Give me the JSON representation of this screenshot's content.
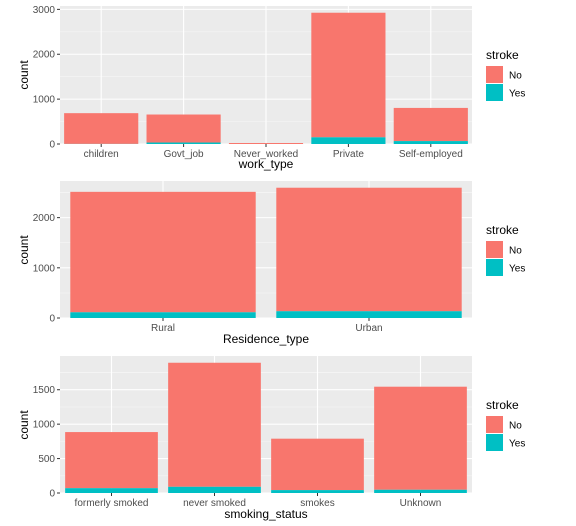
{
  "colors": {
    "panel_bg": "#ebebeb",
    "grid_major": "#ffffff",
    "grid_minor": "#f5f5f5",
    "tick": "#333333",
    "no": "#f8766d",
    "yes": "#00bfc4"
  },
  "chart_data": [
    {
      "type": "bar",
      "stacked": true,
      "xlabel": "work_type",
      "ylabel": "count",
      "categories": [
        "children",
        "Govt_job",
        "Never_worked",
        "Private",
        "Self-employed"
      ],
      "series": [
        {
          "name": "No",
          "values": [
            685,
            624,
            22,
            2776,
            739
          ]
        },
        {
          "name": "Yes",
          "values": [
            2,
            33,
            0,
            149,
            65
          ]
        }
      ],
      "yticks": [
        0,
        1000,
        2000,
        3000
      ],
      "ylim": [
        0,
        3075
      ],
      "legend": {
        "title": "stroke",
        "position": "right",
        "entries": [
          "No",
          "Yes"
        ]
      },
      "grid": true
    },
    {
      "type": "bar",
      "stacked": true,
      "xlabel": "Residence_type",
      "ylabel": "count",
      "categories": [
        "Rural",
        "Urban"
      ],
      "series": [
        {
          "name": "No",
          "values": [
            2400,
            2461
          ]
        },
        {
          "name": "Yes",
          "values": [
            114,
            135
          ]
        }
      ],
      "yticks": [
        0,
        1000,
        2000
      ],
      "ylim": [
        0,
        2730
      ],
      "legend": {
        "title": "stroke",
        "position": "right",
        "entries": [
          "No",
          "Yes"
        ]
      },
      "grid": true
    },
    {
      "type": "bar",
      "stacked": true,
      "xlabel": "smoking_status",
      "ylabel": "count",
      "categories": [
        "formerly smoked",
        "never smoked",
        "smokes",
        "Unknown"
      ],
      "series": [
        {
          "name": "No",
          "values": [
            815,
            1802,
            747,
            1497
          ]
        },
        {
          "name": "Yes",
          "values": [
            70,
            90,
            42,
            47
          ]
        }
      ],
      "yticks": [
        0,
        500,
        1000,
        1500
      ],
      "ylim": [
        0,
        1990
      ],
      "legend": {
        "title": "stroke",
        "position": "right",
        "entries": [
          "No",
          "Yes"
        ]
      },
      "grid": true
    }
  ]
}
